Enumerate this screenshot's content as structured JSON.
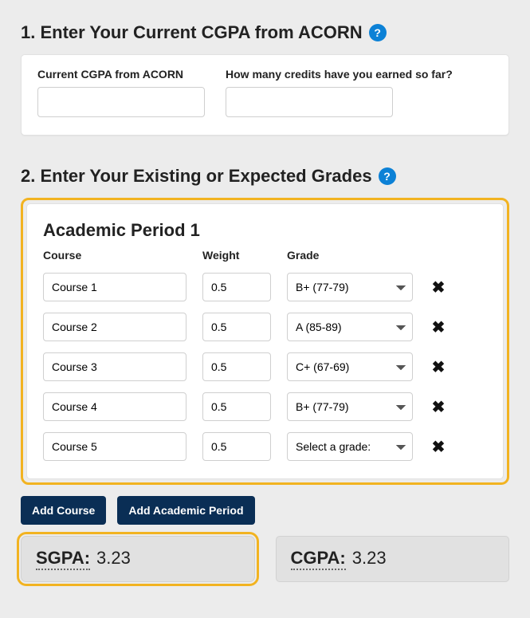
{
  "section1": {
    "heading": "1. Enter Your Current CGPA from ACORN",
    "cgpa_label": "Current CGPA from ACORN",
    "credits_label": "How many credits have you earned so far?",
    "cgpa_value": "",
    "credits_value": ""
  },
  "section2": {
    "heading": "2. Enter Your Existing or Expected Grades",
    "period_title": "Academic Period 1",
    "col_course": "Course",
    "col_weight": "Weight",
    "col_grade": "Grade",
    "rows": [
      {
        "course": "Course 1",
        "weight": "0.5",
        "grade": "B+ (77-79)"
      },
      {
        "course": "Course 2",
        "weight": "0.5",
        "grade": "A (85-89)"
      },
      {
        "course": "Course 3",
        "weight": "0.5",
        "grade": "C+ (67-69)"
      },
      {
        "course": "Course 4",
        "weight": "0.5",
        "grade": "B+ (77-79)"
      },
      {
        "course": "Course 5",
        "weight": "0.5",
        "grade": "Select a grade:"
      }
    ],
    "add_course_label": "Add Course",
    "add_period_label": "Add Academic Period"
  },
  "results": {
    "sgpa_label": "SGPA:",
    "sgpa_value": "3.23",
    "cgpa_label": "CGPA:",
    "cgpa_value": "3.23"
  },
  "colors": {
    "accent_blue": "#0c81d6",
    "button_navy": "#0a2e55",
    "highlight_orange": "#f2b321",
    "page_bg": "#ececec",
    "result_bg": "#e1e1e1"
  }
}
